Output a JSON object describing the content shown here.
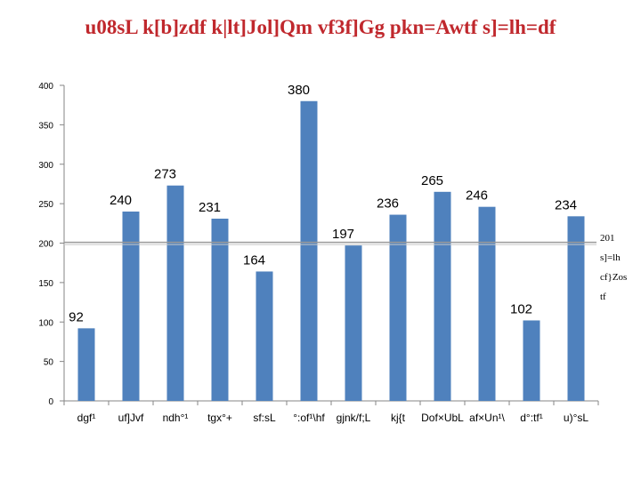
{
  "chart_data": {
    "type": "bar",
    "title": "u08sL k[b]zdf k|lt]Jol]Qm vf3f]Gg pkn=Awtf s]=lh=df",
    "categories": [
      "dgf¹",
      "uf]Jvf",
      "ndh°¹",
      "tgx°+",
      "sf:sL",
      "°:of¹\\hf",
      "gjnk/f;L",
      "kj{t",
      "Dof×UbL",
      "af×Un¹\\",
      "d°:tf¹",
      "u)°sL"
    ],
    "values": [
      92,
      240,
      273,
      231,
      164,
      380,
      197,
      236,
      265,
      246,
      102,
      234
    ],
    "ylim": [
      0,
      400
    ],
    "yticks": [
      0,
      50,
      100,
      150,
      200,
      250,
      300,
      350,
      400
    ],
    "grid": false,
    "bar_color": "#4f81bd",
    "reference_line": {
      "value": 201,
      "label_lines": [
        "201",
        "s]=lh",
        "cf}Zos",
        "tf"
      ]
    }
  }
}
